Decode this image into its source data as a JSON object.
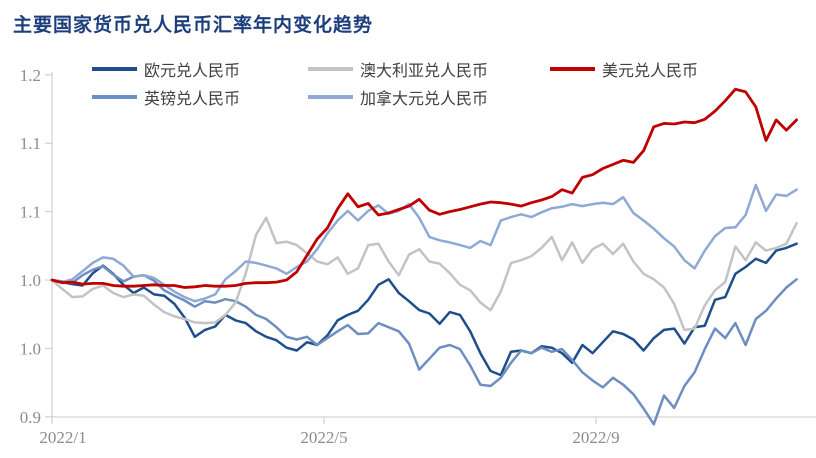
{
  "title": "主要国家货币兑人民币汇率年内变化趋势",
  "title_color": "#1d3e7d",
  "chart_data": {
    "type": "line",
    "title": "主要国家货币兑人民币汇率年内变化趋势",
    "subtitle": "",
    "xlabel": "",
    "ylabel": "",
    "x_unit": "months since 2022-01-01",
    "t_start": 0,
    "t_step": 0.15,
    "x_axis": {
      "tick_labels": [
        "2022/1",
        "2022/5",
        "2022/9"
      ],
      "tick_t": [
        0,
        4,
        8
      ]
    },
    "y_axis": {
      "tick_labels": [
        "1.2",
        "1.1",
        "1.1",
        "1.0",
        "1.0",
        "0.9"
      ],
      "tick_values": [
        1.15,
        1.1,
        1.05,
        1.0,
        0.95,
        0.9
      ],
      "range": [
        0.9,
        1.15
      ]
    },
    "grid": "off",
    "legend_position": "top",
    "baseline": 1.0,
    "series": [
      {
        "id": "eur",
        "name": "欧元兑人民币",
        "color": "#1f4e8c",
        "values": [
          1.0,
          0.9985,
          0.997,
          0.996,
          1.005,
          1.0105,
          1.0045,
          0.9965,
          0.9905,
          0.9945,
          0.9895,
          0.9885,
          0.9825,
          0.9725,
          0.9585,
          0.9635,
          0.966,
          0.9745,
          0.9705,
          0.9685,
          0.9625,
          0.9585,
          0.956,
          0.9505,
          0.9485,
          0.9545,
          0.9525,
          0.9595,
          0.9705,
          0.9745,
          0.9775,
          0.9855,
          0.9965,
          1.0005,
          0.9905,
          0.9845,
          0.978,
          0.9755,
          0.968,
          0.9765,
          0.9745,
          0.9625,
          0.9465,
          0.9335,
          0.9305,
          0.9475,
          0.9485,
          0.9465,
          0.9515,
          0.9505,
          0.9465,
          0.9395,
          0.9525,
          0.9465,
          0.9545,
          0.9625,
          0.9605,
          0.9565,
          0.9485,
          0.9575,
          0.9635,
          0.9645,
          0.9535,
          0.9655,
          0.9665,
          0.9855,
          0.9875,
          1.0045,
          1.0095,
          1.0155,
          1.0125,
          1.0215,
          1.0235,
          1.0265
        ]
      },
      {
        "id": "gbp",
        "name": "英镑兑人民币",
        "color": "#6d8ec1",
        "values": [
          1.0,
          0.999,
          0.998,
          1.0035,
          1.0075,
          1.01,
          1.004,
          0.999,
          1.0025,
          1.0035,
          0.9995,
          0.9925,
          0.9885,
          0.985,
          0.9805,
          0.9845,
          0.9835,
          0.986,
          0.9845,
          0.9805,
          0.9745,
          0.9715,
          0.9655,
          0.9585,
          0.9565,
          0.9585,
          0.9525,
          0.9575,
          0.9625,
          0.967,
          0.9605,
          0.961,
          0.9685,
          0.9655,
          0.9625,
          0.9535,
          0.9345,
          0.9425,
          0.9505,
          0.9525,
          0.9495,
          0.9375,
          0.9235,
          0.9225,
          0.9285,
          0.9395,
          0.9485,
          0.9465,
          0.9505,
          0.9475,
          0.9495,
          0.9415,
          0.9325,
          0.9265,
          0.9215,
          0.9285,
          0.9235,
          0.9165,
          0.906,
          0.8945,
          0.9155,
          0.9065,
          0.9225,
          0.9325,
          0.9495,
          0.9645,
          0.9575,
          0.9685,
          0.9525,
          0.9715,
          0.9775,
          0.9865,
          0.9945,
          1.0005
        ]
      },
      {
        "id": "aud",
        "name": "澳大利亚兑人民币",
        "color": "#c3c3c3",
        "values": [
          1.0,
          0.9935,
          0.9875,
          0.988,
          0.9935,
          0.996,
          0.9905,
          0.9875,
          0.9895,
          0.9885,
          0.982,
          0.9765,
          0.9735,
          0.9715,
          0.969,
          0.9685,
          0.969,
          0.9745,
          0.9835,
          1.005,
          1.033,
          1.0455,
          1.027,
          1.028,
          1.0255,
          1.0195,
          1.0135,
          1.0115,
          1.0165,
          1.0045,
          1.0085,
          1.0255,
          1.0265,
          1.0135,
          1.0035,
          1.0185,
          1.0225,
          1.0135,
          1.012,
          1.005,
          0.9965,
          0.9925,
          0.9835,
          0.978,
          0.9915,
          1.0125,
          1.0145,
          1.0175,
          1.0235,
          1.0315,
          1.0145,
          1.0275,
          1.0125,
          1.0225,
          1.0265,
          1.019,
          1.0265,
          1.0135,
          1.0045,
          1.0005,
          0.9945,
          0.9825,
          0.9635,
          0.9645,
          0.9815,
          0.9925,
          0.9985,
          1.0245,
          1.0145,
          1.0275,
          1.0215,
          1.0235,
          1.0265,
          1.0415
        ]
      },
      {
        "id": "cad",
        "name": "加拿大元兑人民币",
        "color": "#8ea9d6",
        "values": [
          1.0,
          0.9985,
          1.0005,
          1.0065,
          1.0125,
          1.0165,
          1.0155,
          1.0105,
          1.0025,
          1.0035,
          1.0015,
          0.9965,
          0.9915,
          0.9875,
          0.9845,
          0.9865,
          0.9895,
          1.0005,
          1.0065,
          1.0135,
          1.0125,
          1.0105,
          1.0085,
          1.0045,
          1.0095,
          1.0135,
          1.0225,
          1.034,
          1.0435,
          1.0505,
          1.0435,
          1.0505,
          1.0545,
          1.0485,
          1.0505,
          1.0555,
          1.0455,
          1.0315,
          1.029,
          1.0275,
          1.0255,
          1.0235,
          1.0285,
          1.0255,
          1.0435,
          1.046,
          1.048,
          1.046,
          1.0495,
          1.0525,
          1.0535,
          1.0555,
          1.054,
          1.0555,
          1.0565,
          1.0555,
          1.0605,
          1.049,
          1.0435,
          1.0375,
          1.0305,
          1.0245,
          1.0145,
          1.0085,
          1.0215,
          1.032,
          1.038,
          1.0385,
          1.0475,
          1.0695,
          1.0505,
          1.0625,
          1.0615,
          1.066
        ]
      },
      {
        "id": "usd",
        "name": "美元兑人民币",
        "color": "#c00000",
        "values": [
          1.0,
          0.998,
          0.9985,
          0.997,
          0.9975,
          0.9975,
          0.996,
          0.9955,
          0.9955,
          0.996,
          0.9965,
          0.996,
          0.996,
          0.9945,
          0.995,
          0.996,
          0.9955,
          0.9955,
          0.996,
          0.9975,
          0.998,
          0.998,
          0.9985,
          1.0,
          1.006,
          1.018,
          1.03,
          1.038,
          1.052,
          1.063,
          1.0535,
          1.056,
          1.0475,
          1.049,
          1.0515,
          1.054,
          1.059,
          1.051,
          1.048,
          1.05,
          1.0515,
          1.0535,
          1.0555,
          1.057,
          1.0565,
          1.0555,
          1.054,
          1.0565,
          1.0585,
          1.061,
          1.066,
          1.0635,
          1.075,
          1.077,
          1.0815,
          1.0845,
          1.0875,
          1.086,
          1.0945,
          1.112,
          1.1145,
          1.114,
          1.1155,
          1.115,
          1.1175,
          1.1235,
          1.131,
          1.1395,
          1.1375,
          1.1265,
          1.102,
          1.117,
          1.1095,
          1.117
        ]
      }
    ]
  },
  "legend": {
    "grid_order": [
      0,
      2,
      4,
      1,
      3
    ]
  }
}
